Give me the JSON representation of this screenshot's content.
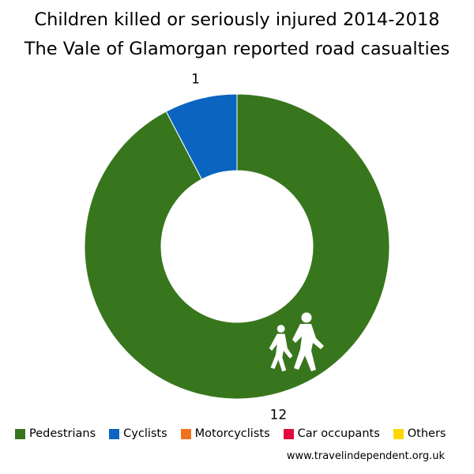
{
  "chart_data": {
    "type": "pie",
    "title": "Children killed or seriously injured 2014-2018",
    "subtitle": "The Vale of Glamorgan reported road casualties",
    "categories": [
      "Pedestrians",
      "Cyclists",
      "Motorcyclists",
      "Car occupants",
      "Others"
    ],
    "values": [
      12,
      1,
      0,
      0,
      0
    ],
    "colors": [
      "#38761d",
      "#0b64c0",
      "#f07120",
      "#e30b3c",
      "#ffd700"
    ],
    "data_labels": [
      "12",
      "1",
      "",
      "",
      ""
    ],
    "donut": true,
    "legend_position": "bottom"
  },
  "icons": {
    "pedestrian_segment": "children-crossing-icon"
  },
  "source": "www.travelindependent.org.uk"
}
